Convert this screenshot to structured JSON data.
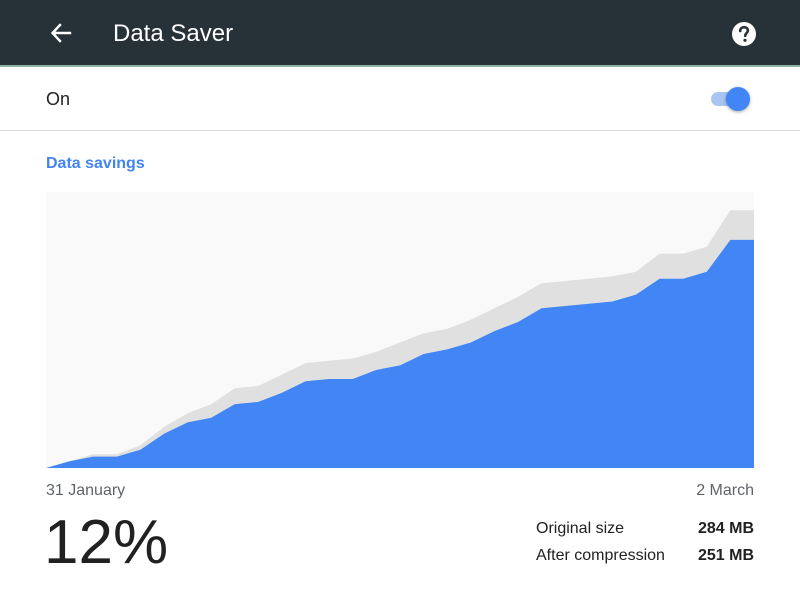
{
  "header": {
    "title": "Data Saver",
    "back_icon": "arrow-back-icon",
    "help_icon": "help-circle-icon",
    "background": "#263238"
  },
  "toggle": {
    "label": "On",
    "state": "on",
    "accent": "#4285f4"
  },
  "savings": {
    "section_title": "Data savings",
    "start_date": "31 January",
    "end_date": "2 March",
    "percent": "12%",
    "original_label": "Original size",
    "original_value": "284 MB",
    "compressed_label": "After compression",
    "compressed_value": "251 MB"
  },
  "chart_data": {
    "type": "area",
    "title": "",
    "xlabel": "",
    "ylabel": "",
    "x_range": [
      "31 January",
      "2 March"
    ],
    "series": [
      {
        "role": "original",
        "color": "#e0e0e0",
        "values": [
          0,
          3,
          6,
          6,
          10,
          18,
          24,
          28,
          35,
          36,
          41,
          46,
          47,
          48,
          51,
          55,
          59,
          61,
          65,
          70,
          75,
          81,
          82,
          83,
          84,
          86,
          94,
          94,
          97,
          113,
          113
        ]
      },
      {
        "role": "compressed",
        "color": "#4285f4",
        "values": [
          0,
          3,
          5,
          5,
          8,
          15,
          20,
          22,
          28,
          29,
          33,
          38,
          39,
          39,
          43,
          45,
          50,
          52,
          55,
          60,
          64,
          70,
          71,
          72,
          73,
          76,
          83,
          83,
          86,
          100,
          100
        ]
      }
    ],
    "ymax": 121,
    "plot_background": "#f9f9f9"
  }
}
